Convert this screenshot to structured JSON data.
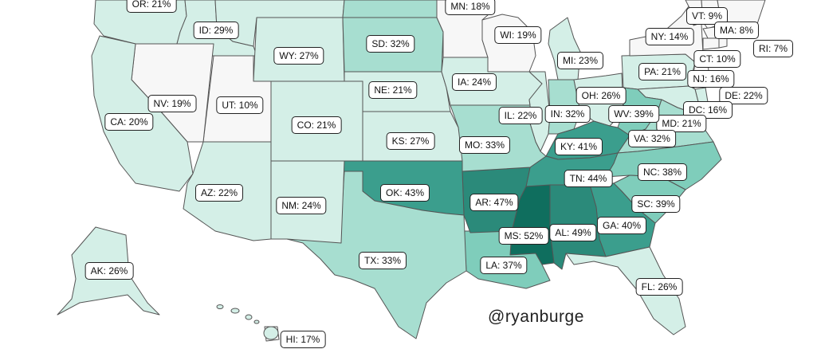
{
  "credit": "@ryanburge",
  "colors": {
    "scale": [
      "#f7f7f7",
      "#d4efe7",
      "#a7ded0",
      "#7fcdbb",
      "#3b9e8d",
      "#2b8a7a",
      "#0f6e5e"
    ],
    "border": "#555555",
    "background": "#ffffff"
  },
  "states": [
    {
      "abbr": "OR",
      "value": 21,
      "text": "OR: 21%"
    },
    {
      "abbr": "ID",
      "value": 29,
      "text": "ID: 29%"
    },
    {
      "abbr": "WY",
      "value": 27,
      "text": "WY: 27%"
    },
    {
      "abbr": "SD",
      "value": 32,
      "text": "SD: 32%"
    },
    {
      "abbr": "MN",
      "value": 18,
      "text": "MN: 18%"
    },
    {
      "abbr": "WI",
      "value": 19,
      "text": "WI: 19%"
    },
    {
      "abbr": "MI",
      "value": 23,
      "text": "MI: 23%"
    },
    {
      "abbr": "NY",
      "value": 14,
      "text": "NY: 14%"
    },
    {
      "abbr": "VT",
      "value": 9,
      "text": "VT: 9%"
    },
    {
      "abbr": "MA",
      "value": 8,
      "text": "MA: 8%"
    },
    {
      "abbr": "RI",
      "value": 7,
      "text": "RI: 7%"
    },
    {
      "abbr": "CT",
      "value": 10,
      "text": "CT: 10%"
    },
    {
      "abbr": "NJ",
      "value": 16,
      "text": "NJ: 16%"
    },
    {
      "abbr": "DE",
      "value": 22,
      "text": "DE: 22%"
    },
    {
      "abbr": "DC",
      "value": 16,
      "text": "DC: 16%"
    },
    {
      "abbr": "MD",
      "value": 21,
      "text": "MD: 21%"
    },
    {
      "abbr": "PA",
      "value": 21,
      "text": "PA: 21%"
    },
    {
      "abbr": "OH",
      "value": 26,
      "text": "OH: 26%"
    },
    {
      "abbr": "WV",
      "value": 39,
      "text": "WV: 39%"
    },
    {
      "abbr": "VA",
      "value": 32,
      "text": "VA: 32%"
    },
    {
      "abbr": "NV",
      "value": 19,
      "text": "NV: 19%"
    },
    {
      "abbr": "CA",
      "value": 20,
      "text": "CA: 20%"
    },
    {
      "abbr": "UT",
      "value": 10,
      "text": "UT: 10%"
    },
    {
      "abbr": "CO",
      "value": 21,
      "text": "CO: 21%"
    },
    {
      "abbr": "NE",
      "value": 21,
      "text": "NE: 21%"
    },
    {
      "abbr": "IA",
      "value": 24,
      "text": "IA: 24%"
    },
    {
      "abbr": "IL",
      "value": 22,
      "text": "IL: 22%"
    },
    {
      "abbr": "IN",
      "value": 32,
      "text": "IN: 32%"
    },
    {
      "abbr": "KS",
      "value": 27,
      "text": "KS: 27%"
    },
    {
      "abbr": "MO",
      "value": 33,
      "text": "MO: 33%"
    },
    {
      "abbr": "KY",
      "value": 41,
      "text": "KY: 41%"
    },
    {
      "abbr": "NC",
      "value": 38,
      "text": "NC: 38%"
    },
    {
      "abbr": "TN",
      "value": 44,
      "text": "TN: 44%"
    },
    {
      "abbr": "AZ",
      "value": 22,
      "text": "AZ: 22%"
    },
    {
      "abbr": "OK",
      "value": 43,
      "text": "OK: 43%"
    },
    {
      "abbr": "NM",
      "value": 24,
      "text": "NM: 24%"
    },
    {
      "abbr": "AR",
      "value": 47,
      "text": "AR: 47%"
    },
    {
      "abbr": "SC",
      "value": 39,
      "text": "SC: 39%"
    },
    {
      "abbr": "GA",
      "value": 40,
      "text": "GA: 40%"
    },
    {
      "abbr": "AL",
      "value": 49,
      "text": "AL: 49%"
    },
    {
      "abbr": "MS",
      "value": 52,
      "text": "MS: 52%"
    },
    {
      "abbr": "TX",
      "value": 33,
      "text": "TX: 33%"
    },
    {
      "abbr": "LA",
      "value": 37,
      "text": "LA: 37%"
    },
    {
      "abbr": "AK",
      "value": 26,
      "text": "AK: 26%"
    },
    {
      "abbr": "FL",
      "value": 26,
      "text": "FL: 26%"
    },
    {
      "abbr": "HI",
      "value": 17,
      "text": "HI: 17%"
    }
  ]
}
